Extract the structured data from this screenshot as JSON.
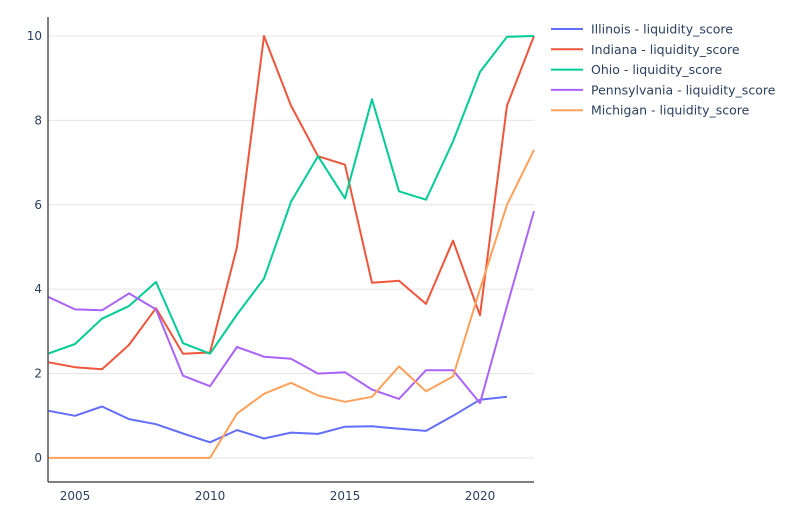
{
  "chart_data": {
    "type": "line",
    "title": "",
    "xlabel": "",
    "ylabel": "",
    "xlim": [
      2004,
      2022
    ],
    "ylim": [
      -0.57,
      10.45
    ],
    "grid": true,
    "legend_position": "right",
    "x_ticks": [
      2005,
      2010,
      2015,
      2020
    ],
    "y_ticks": [
      0,
      2,
      4,
      6,
      8,
      10
    ],
    "x": [
      2004,
      2005,
      2006,
      2007,
      2008,
      2009,
      2010,
      2011,
      2012,
      2013,
      2014,
      2015,
      2016,
      2017,
      2018,
      2019,
      2020,
      2021,
      2022
    ],
    "series": [
      {
        "name": "Illinois - liquidity_score",
        "color": "#636efa",
        "values": [
          1.12,
          1.0,
          1.22,
          0.92,
          0.8,
          0.58,
          0.37,
          0.66,
          0.46,
          0.6,
          0.57,
          0.74,
          0.75,
          0.69,
          0.64,
          1.0,
          1.38,
          1.45,
          null
        ]
      },
      {
        "name": "Indiana - liquidity_score",
        "color": "#EF553B",
        "values": [
          2.27,
          2.15,
          2.1,
          2.68,
          3.55,
          2.47,
          2.5,
          5.0,
          10.0,
          8.35,
          7.15,
          6.95,
          4.15,
          4.2,
          3.65,
          5.15,
          3.38,
          8.35,
          10.0
        ]
      },
      {
        "name": "Ohio - liquidity_score",
        "color": "#00cc96",
        "values": [
          2.47,
          2.7,
          3.3,
          3.6,
          4.17,
          2.72,
          2.47,
          3.4,
          4.25,
          6.07,
          7.15,
          6.15,
          8.5,
          6.32,
          6.12,
          7.5,
          9.15,
          9.98,
          10.0
        ]
      },
      {
        "name": "Pennsylvania - liquidity_score",
        "color": "#ab63fa",
        "values": [
          3.82,
          3.52,
          3.5,
          3.9,
          3.52,
          1.95,
          1.7,
          2.63,
          2.4,
          2.35,
          2.0,
          2.03,
          1.62,
          1.4,
          2.08,
          2.08,
          1.3,
          3.6,
          5.85
        ]
      },
      {
        "name": "Michigan - liquidity_score",
        "color": "#FFA15A",
        "values": [
          0,
          0,
          0,
          0,
          0,
          0,
          0,
          1.05,
          1.52,
          1.78,
          1.48,
          1.33,
          1.45,
          2.17,
          1.58,
          1.93,
          4.0,
          6.0,
          7.3
        ]
      }
    ]
  }
}
